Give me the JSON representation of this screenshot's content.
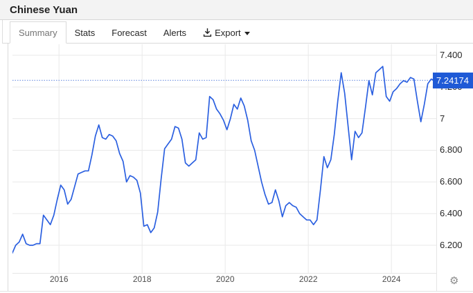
{
  "window": {
    "title": "Chinese Yuan"
  },
  "tabs": [
    {
      "label": "Summary",
      "active": true
    },
    {
      "label": "Stats",
      "active": false
    },
    {
      "label": "Forecast",
      "active": false
    },
    {
      "label": "Alerts",
      "active": false
    },
    {
      "label": "Export",
      "active": false,
      "icon": "download-icon",
      "caret": "caret-down-icon"
    }
  ],
  "icons": {
    "settings_glyph": "⚙"
  },
  "chart_data": {
    "type": "line",
    "title": "Chinese Yuan",
    "x_unit": "decimal-year",
    "x_start": 2014.875,
    "x_step": 0.0833333,
    "values": [
      6.15,
      6.2,
      6.22,
      6.27,
      6.21,
      6.2,
      6.2,
      6.21,
      6.21,
      6.39,
      6.36,
      6.33,
      6.39,
      6.49,
      6.58,
      6.55,
      6.46,
      6.49,
      6.57,
      6.65,
      6.66,
      6.67,
      6.67,
      6.77,
      6.89,
      6.96,
      6.88,
      6.87,
      6.9,
      6.89,
      6.86,
      6.78,
      6.73,
      6.6,
      6.64,
      6.63,
      6.61,
      6.53,
      6.32,
      6.33,
      6.28,
      6.31,
      6.41,
      6.62,
      6.81,
      6.84,
      6.87,
      6.95,
      6.94,
      6.87,
      6.72,
      6.7,
      6.72,
      6.74,
      6.91,
      6.87,
      6.88,
      7.14,
      7.12,
      7.06,
      7.03,
      6.99,
      6.93,
      7.0,
      7.09,
      7.06,
      7.13,
      7.08,
      6.99,
      6.86,
      6.8,
      6.7,
      6.6,
      6.52,
      6.46,
      6.47,
      6.55,
      6.48,
      6.38,
      6.45,
      6.47,
      6.45,
      6.44,
      6.4,
      6.38,
      6.36,
      6.36,
      6.33,
      6.36,
      6.55,
      6.76,
      6.69,
      6.74,
      6.9,
      7.11,
      7.29,
      7.16,
      6.95,
      6.74,
      6.92,
      6.88,
      6.91,
      7.07,
      7.24,
      7.15,
      7.29,
      7.31,
      7.33,
      7.14,
      7.11,
      7.17,
      7.19,
      7.22,
      7.24,
      7.23,
      7.26,
      7.25,
      7.11,
      6.98,
      7.09,
      7.22,
      7.25,
      7.24174
    ],
    "last_value": 7.24174,
    "last_value_label": "7.24174",
    "yticks": [
      {
        "value": 7.4,
        "label": "7.400"
      },
      {
        "value": 7.2,
        "label": "7.200"
      },
      {
        "value": 7.0,
        "label": "7"
      },
      {
        "value": 6.8,
        "label": "6.800"
      },
      {
        "value": 6.6,
        "label": "6.600"
      },
      {
        "value": 6.4,
        "label": "6.400"
      },
      {
        "value": 6.2,
        "label": "6.200"
      }
    ],
    "xticks": [
      {
        "value": 2016,
        "label": "2016"
      },
      {
        "value": 2018,
        "label": "2018"
      },
      {
        "value": 2020,
        "label": "2020"
      },
      {
        "value": 2022,
        "label": "2022"
      },
      {
        "value": 2024,
        "label": "2024"
      }
    ],
    "xlim": [
      2014.88,
      2025.08
    ],
    "ylim": [
      6.025,
      7.47
    ],
    "grid": true,
    "legend": "none",
    "colors": {
      "line": "#2a5fe0",
      "dotted_line": "#5b82dd",
      "grid": "#e9e9e9",
      "price_flag_bg": "#1f5ad6",
      "price_flag_text": "#ffffff"
    }
  }
}
